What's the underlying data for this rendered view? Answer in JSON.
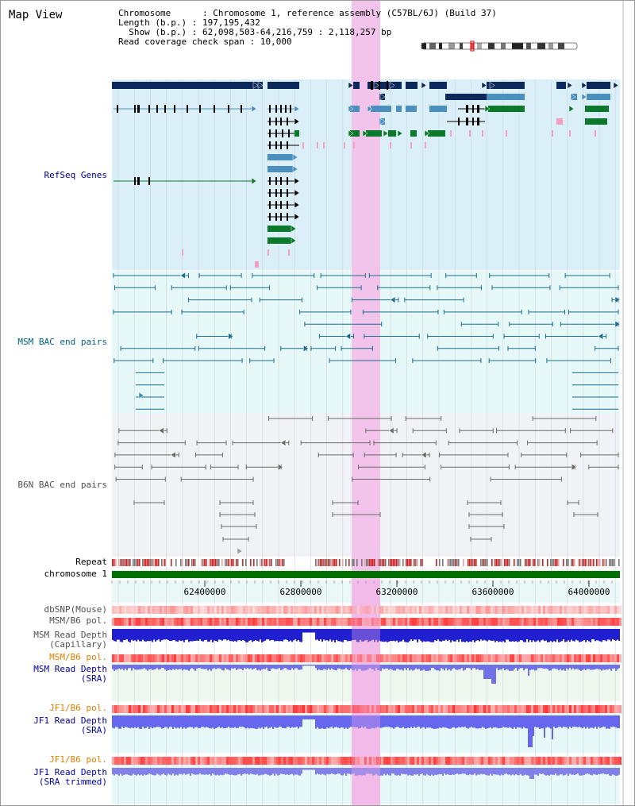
{
  "view": {
    "title": "Map View",
    "chromosome_key": "Chromosome",
    "chromosome_value": "Chromosome 1, reference assembly (C57BL/6J) (Build 37)",
    "length_key": "Length (b.p.)",
    "length_value": "197,195,432",
    "show_key": "Show (b.p.)",
    "show_value": "62,098,503-64,216,759 : 2,118,257 bp",
    "coverage_key": "Read coverage check span",
    "coverage_value": "10,000"
  },
  "tracks": {
    "refseq": "RefSeq Genes",
    "msm_bac": "MSM BAC end pairs",
    "b6n_bac": "B6N BAC end pairs",
    "repeat": "Repeat",
    "chromosome": "chromosome 1",
    "dbsnp": "dbSNP(Mouse)",
    "msm_b6_pol_1": "MSM/B6 pol.",
    "msm_depth_cap_1": "MSM Read Depth",
    "msm_depth_cap_2": "(Capillary)",
    "msm_b6_pol_2": "MSM/B6 pol.",
    "msm_depth_sra_1": "MSM Read Depth",
    "msm_depth_sra_2": "(SRA)",
    "jf1_b6_pol_1": "JF1/B6 pol.",
    "jf1_depth_sra_1": "JF1 Read Depth",
    "jf1_depth_sra_2": "(SRA)",
    "jf1_b6_pol_2": "JF1/B6 pol.",
    "jf1_depth_trim_1": "JF1 Read Depth",
    "jf1_depth_trim_2": "(SRA trimmed)"
  },
  "axis": {
    "tick_labels": [
      "62400000",
      "62800000",
      "63200000",
      "63600000",
      "64000000"
    ],
    "range_start": 62098503,
    "range_end": 64216759
  },
  "colors": {
    "navy": "#0b2a5b",
    "steel": "#4a8fbd",
    "green": "#0a7a2a",
    "pink_highlight": "#f6d2f0",
    "refseq_bg": "#dbeff8",
    "msm_bg": "#e6f8f8",
    "b6n_bg": "#f1f2f6",
    "chrom_green": "#007000",
    "label_navy": "#000080",
    "label_teal": "#006080",
    "label_gray": "#505050",
    "label_orange": "#e08000",
    "label_blue": "#0000a0"
  }
}
